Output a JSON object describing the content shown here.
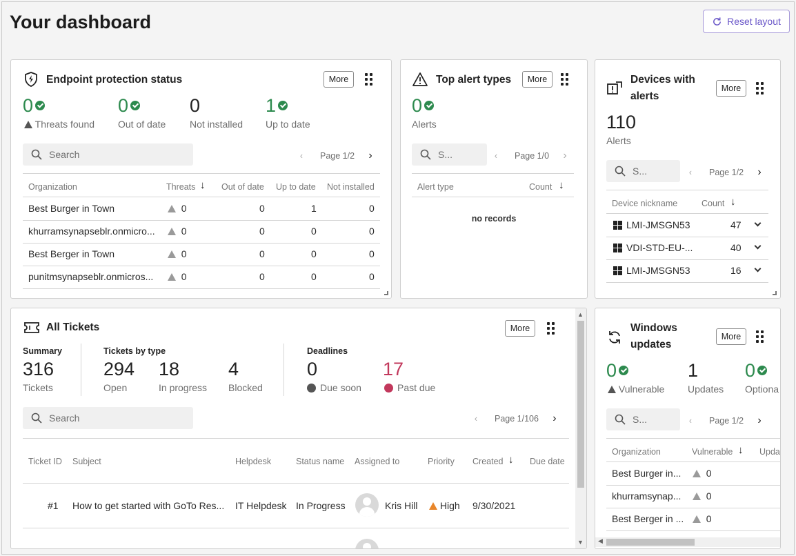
{
  "page": {
    "title": "Your dashboard",
    "reset_label": "Reset layout",
    "more_label": "More"
  },
  "endpoint": {
    "title": "Endpoint protection status",
    "stats": [
      {
        "value": "0",
        "label": "Threats found"
      },
      {
        "value": "0",
        "label": "Out of date"
      },
      {
        "value": "0",
        "label": "Not installed"
      },
      {
        "value": "1",
        "label": "Up to date"
      }
    ],
    "search_placeholder": "Search",
    "page": "Page 1/2",
    "columns": [
      "Organization",
      "Threats",
      "Out of date",
      "Up to date",
      "Not installed"
    ],
    "rows": [
      {
        "org": "Best Burger in Town",
        "threats": "0",
        "out": "0",
        "up": "1",
        "not": "0"
      },
      {
        "org": "khurramsynapseblr.onmicro...",
        "threats": "0",
        "out": "0",
        "up": "0",
        "not": "0"
      },
      {
        "org": "Best Berger in Town",
        "threats": "0",
        "out": "0",
        "up": "0",
        "not": "0"
      },
      {
        "org": "punitmsynapseblr.onmicros...",
        "threats": "0",
        "out": "0",
        "up": "0",
        "not": "0"
      }
    ]
  },
  "alerts": {
    "title": "Top alert types",
    "value": "0",
    "label": "Alerts",
    "search_placeholder": "S...",
    "page": "Page 1/0",
    "columns": [
      "Alert type",
      "Count"
    ],
    "empty": "no records"
  },
  "devices": {
    "title_line1": "Devices with",
    "title_line2": "alerts",
    "value": "110",
    "label": "Alerts",
    "search_placeholder": "S...",
    "page": "Page 1/2",
    "columns": [
      "Device nickname",
      "Count"
    ],
    "rows": [
      {
        "name": "LMI-JMSGN53",
        "count": "47"
      },
      {
        "name": "VDI-STD-EU-...",
        "count": "40"
      },
      {
        "name": "LMI-JMSGN53",
        "count": "16"
      }
    ]
  },
  "tickets": {
    "title": "All Tickets",
    "summary_h": "Summary",
    "summary_val": "316",
    "summary_lbl": "Tickets",
    "bytype_h": "Tickets by type",
    "bytype": [
      {
        "value": "294",
        "label": "Open"
      },
      {
        "value": "18",
        "label": "In progress"
      },
      {
        "value": "4",
        "label": "Blocked"
      }
    ],
    "deadlines_h": "Deadlines",
    "due_soon_val": "0",
    "due_soon_lbl": "Due soon",
    "past_due_val": "17",
    "past_due_lbl": "Past due",
    "search_placeholder": "Search",
    "page": "Page 1/106",
    "columns": [
      "Ticket ID",
      "Subject",
      "Helpdesk",
      "Status name",
      "Assigned to",
      "Priority",
      "Created",
      "Due date"
    ],
    "rows": [
      {
        "id": "#1",
        "subject": "How to get started with GoTo Res...",
        "helpdesk": "IT Helpdesk",
        "status": "In Progress",
        "assigned": "Kris Hill",
        "priority": "High",
        "created": "9/30/2021"
      }
    ]
  },
  "updates": {
    "title_line1": "Windows",
    "title_line2": "updates",
    "stats": [
      {
        "value": "0",
        "label": "Vulnerable"
      },
      {
        "value": "1",
        "label": "Updates"
      },
      {
        "value": "0",
        "label": "Optiona"
      }
    ],
    "search_placeholder": "S...",
    "page": "Page 1/2",
    "columns": [
      "Organization",
      "Vulnerable",
      "Upda"
    ],
    "rows": [
      {
        "org": "Best Burger in...",
        "vuln": "0"
      },
      {
        "org": "khurramsynap...",
        "vuln": "0"
      },
      {
        "org": "Best Berger in ...",
        "vuln": "0"
      }
    ]
  },
  "colors": {
    "accent": "#6a57c8",
    "green": "#2d8a4e",
    "red": "#c2385c",
    "orange": "#e8862a"
  }
}
